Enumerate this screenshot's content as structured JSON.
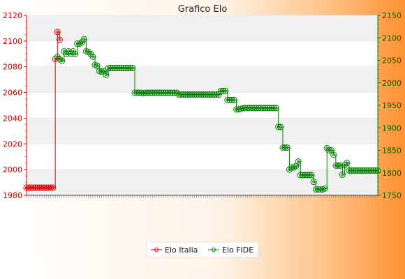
{
  "chart_data": {
    "type": "line",
    "title": "Grafico Elo",
    "x": [
      1,
      2,
      3,
      4,
      5,
      6,
      7,
      8,
      9,
      10,
      11,
      12,
      13,
      14,
      15,
      16,
      17,
      18,
      19,
      20,
      21,
      22,
      23,
      24,
      25,
      26,
      27,
      28,
      29,
      30,
      31,
      32,
      33,
      34,
      35,
      36,
      37,
      38,
      39,
      40,
      41,
      42,
      43,
      44,
      45,
      46,
      47,
      48,
      49,
      50,
      51,
      52,
      53,
      54,
      55,
      56,
      57,
      58,
      59,
      60,
      61,
      62,
      63,
      64,
      65,
      66,
      67,
      68,
      69,
      70,
      71,
      72,
      73,
      74,
      75,
      76,
      77,
      78,
      79,
      80,
      81,
      82,
      83,
      84,
      85,
      86,
      87,
      88,
      89,
      90,
      91,
      92,
      93,
      94,
      95,
      96,
      97,
      98,
      99,
      100,
      101,
      102,
      103,
      104,
      105,
      106,
      107,
      108,
      109,
      110,
      111,
      112,
      113,
      114,
      115,
      116,
      117,
      118,
      119,
      120,
      121,
      122,
      123,
      124,
      125,
      126,
      127,
      128,
      129,
      130,
      131,
      132,
      133,
      134,
      135,
      136,
      137,
      138,
      139,
      140,
      141,
      142,
      143,
      144,
      145,
      146,
      147,
      148,
      149,
      150,
      151,
      152,
      153,
      154,
      155,
      156,
      157,
      158,
      159,
      160
    ],
    "xlim": [
      1,
      160
    ],
    "y_left": {
      "min": 1980,
      "max": 2120,
      "ticks": [
        "1980",
        "2000",
        "2020",
        "2040",
        "2060",
        "2080",
        "2100",
        "2120"
      ]
    },
    "y_right": {
      "min": 1750,
      "max": 2150,
      "ticks": [
        "1750",
        "1800",
        "1850",
        "1900",
        "1950",
        "2000",
        "2050",
        "2100",
        "2150"
      ]
    },
    "legend": {
      "placement": "bottom-center",
      "items": [
        "Elo Italia",
        "Elo FIDE"
      ]
    },
    "grid": {
      "horizontal_bands": true
    },
    "series": [
      {
        "name": "Elo Italia",
        "axis": "left",
        "color": "#e00000",
        "points": [
          [
            1,
            1986
          ],
          [
            2,
            1986
          ],
          [
            3,
            1986
          ],
          [
            4,
            1986
          ],
          [
            5,
            1986
          ],
          [
            6,
            1986
          ],
          [
            7,
            1986
          ],
          [
            8,
            1986
          ],
          [
            9,
            1986
          ],
          [
            10,
            1986
          ],
          [
            11,
            1986
          ],
          [
            12,
            1986
          ],
          [
            13,
            1986
          ],
          [
            14,
            2086
          ],
          [
            15,
            2107
          ],
          [
            16,
            2101
          ]
        ]
      },
      {
        "name": "Elo FIDE",
        "axis": "right",
        "color": "#008000",
        "points": [
          [
            15,
            2058
          ],
          [
            16,
            2053
          ],
          [
            17,
            2049
          ],
          [
            18,
            2070
          ],
          [
            19,
            2064
          ],
          [
            20,
            2070
          ],
          [
            21,
            2064
          ],
          [
            22,
            2070
          ],
          [
            23,
            2064
          ],
          [
            24,
            2087
          ],
          [
            25,
            2087
          ],
          [
            26,
            2090
          ],
          [
            27,
            2097
          ],
          [
            28,
            2070
          ],
          [
            29,
            2069
          ],
          [
            30,
            2064
          ],
          [
            31,
            2058
          ],
          [
            32,
            2040
          ],
          [
            33,
            2038
          ],
          [
            34,
            2026
          ],
          [
            35,
            2025
          ],
          [
            36,
            2026
          ],
          [
            37,
            2018
          ],
          [
            38,
            2032
          ],
          [
            39,
            2033
          ],
          [
            40,
            2033
          ],
          [
            41,
            2033
          ],
          [
            42,
            2033
          ],
          [
            43,
            2033
          ],
          [
            44,
            2033
          ],
          [
            45,
            2033
          ],
          [
            46,
            2033
          ],
          [
            47,
            2033
          ],
          [
            48,
            2033
          ],
          [
            49,
            2033
          ],
          [
            50,
            1978
          ],
          [
            51,
            1978
          ],
          [
            52,
            1978
          ],
          [
            53,
            1978
          ],
          [
            54,
            1977
          ],
          [
            55,
            1978
          ],
          [
            56,
            1978
          ],
          [
            57,
            1978
          ],
          [
            58,
            1978
          ],
          [
            59,
            1978
          ],
          [
            60,
            1978
          ],
          [
            61,
            1978
          ],
          [
            62,
            1978
          ],
          [
            63,
            1978
          ],
          [
            64,
            1978
          ],
          [
            65,
            1978
          ],
          [
            66,
            1978
          ],
          [
            67,
            1978
          ],
          [
            68,
            1978
          ],
          [
            69,
            1978
          ],
          [
            70,
            1974
          ],
          [
            71,
            1974
          ],
          [
            72,
            1974
          ],
          [
            73,
            1974
          ],
          [
            74,
            1974
          ],
          [
            75,
            1974
          ],
          [
            76,
            1974
          ],
          [
            77,
            1974
          ],
          [
            78,
            1974
          ],
          [
            79,
            1974
          ],
          [
            80,
            1974
          ],
          [
            81,
            1974
          ],
          [
            82,
            1974
          ],
          [
            83,
            1974
          ],
          [
            84,
            1974
          ],
          [
            85,
            1974
          ],
          [
            86,
            1974
          ],
          [
            87,
            1974
          ],
          [
            88,
            1974
          ],
          [
            89,
            1982
          ],
          [
            90,
            1982
          ],
          [
            91,
            1982
          ],
          [
            92,
            1962
          ],
          [
            93,
            1962
          ],
          [
            94,
            1962
          ],
          [
            95,
            1962
          ],
          [
            96,
            1941
          ],
          [
            97,
            1941
          ],
          [
            98,
            1942
          ],
          [
            99,
            1944
          ],
          [
            100,
            1944
          ],
          [
            101,
            1944
          ],
          [
            102,
            1944
          ],
          [
            103,
            1944
          ],
          [
            104,
            1944
          ],
          [
            105,
            1944
          ],
          [
            106,
            1944
          ],
          [
            107,
            1944
          ],
          [
            108,
            1944
          ],
          [
            109,
            1944
          ],
          [
            110,
            1944
          ],
          [
            111,
            1944
          ],
          [
            112,
            1944
          ],
          [
            113,
            1944
          ],
          [
            114,
            1944
          ],
          [
            115,
            1902
          ],
          [
            116,
            1902
          ],
          [
            117,
            1856
          ],
          [
            118,
            1856
          ],
          [
            119,
            1856
          ],
          [
            120,
            1807
          ],
          [
            121,
            1812
          ],
          [
            122,
            1812
          ],
          [
            123,
            1815
          ],
          [
            124,
            1825
          ],
          [
            125,
            1795
          ],
          [
            126,
            1795
          ],
          [
            127,
            1795
          ],
          [
            128,
            1795
          ],
          [
            129,
            1795
          ],
          [
            130,
            1795
          ],
          [
            131,
            1780
          ],
          [
            132,
            1763
          ],
          [
            133,
            1763
          ],
          [
            134,
            1763
          ],
          [
            135,
            1763
          ],
          [
            136,
            1765
          ],
          [
            137,
            1855
          ],
          [
            138,
            1850
          ],
          [
            139,
            1850
          ],
          [
            140,
            1840
          ],
          [
            141,
            1816
          ],
          [
            142,
            1816
          ],
          [
            143,
            1816
          ],
          [
            144,
            1796
          ],
          [
            145,
            1817
          ],
          [
            146,
            1822
          ],
          [
            147,
            1805
          ],
          [
            148,
            1805
          ],
          [
            149,
            1805
          ],
          [
            150,
            1805
          ],
          [
            151,
            1805
          ],
          [
            152,
            1805
          ],
          [
            153,
            1805
          ],
          [
            154,
            1805
          ],
          [
            155,
            1805
          ],
          [
            156,
            1805
          ],
          [
            157,
            1805
          ],
          [
            158,
            1805
          ],
          [
            159,
            1805
          ],
          [
            160,
            1805
          ]
        ]
      }
    ]
  }
}
